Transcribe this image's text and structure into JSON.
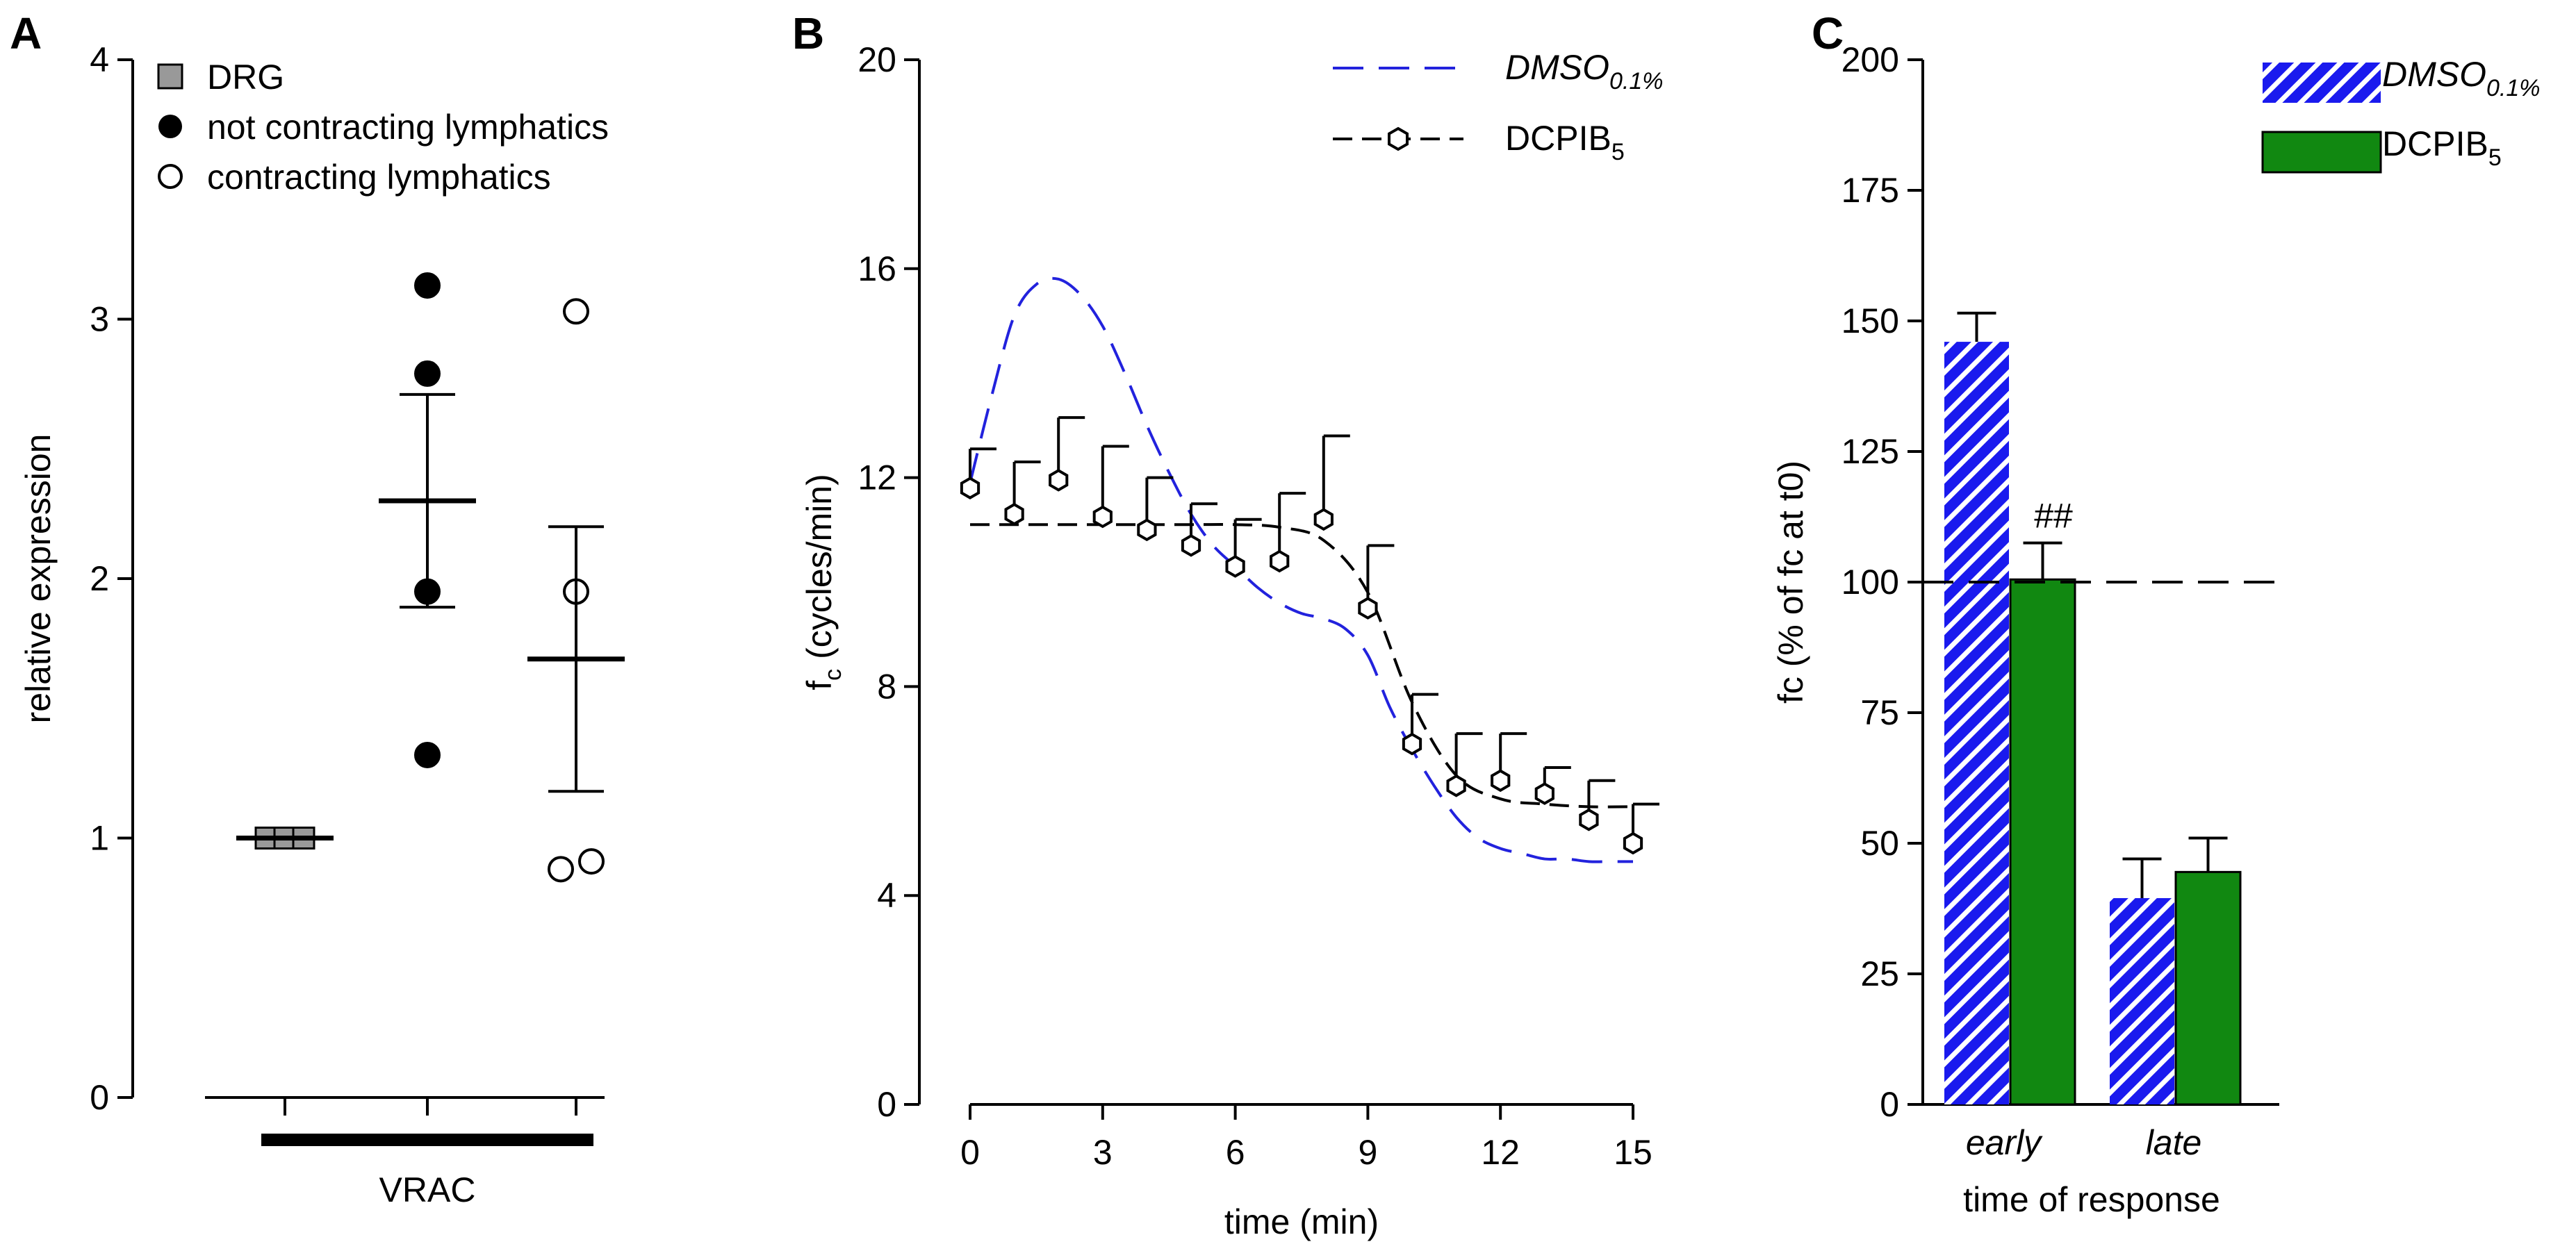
{
  "chart_data": [
    {
      "panel": "A",
      "type": "scatter",
      "ylabel": "relative expression",
      "ylim": [
        0,
        4
      ],
      "yticks": [
        "0",
        "1",
        "2",
        "3",
        "4"
      ],
      "group_label": "VRAC",
      "legend": [
        {
          "label": "DRG",
          "marker": "gray-square"
        },
        {
          "label": "not contracting lymphatics",
          "marker": "filled-circle"
        },
        {
          "label": "contracting lymphatics",
          "marker": "open-circle"
        }
      ],
      "groups": [
        {
          "name": "DRG",
          "points": [
            1.0,
            1.0,
            1.0
          ],
          "mean": 1.0,
          "sem": 0.0
        },
        {
          "name": "not contracting lymphatics",
          "points": [
            3.13,
            2.79,
            1.95,
            1.32
          ],
          "mean": 2.3,
          "sem": 0.41
        },
        {
          "name": "contracting lymphatics",
          "points": [
            3.03,
            1.95,
            0.88,
            0.91
          ],
          "mean": 1.69,
          "sem": 0.51
        }
      ]
    },
    {
      "panel": "B",
      "type": "line",
      "xlabel": "time (min)",
      "ylabel": "fc (cycles/min)",
      "ylabel_main": "f",
      "ylabel_sub": "c",
      "ylabel_rest": " (cycles/min)",
      "xlim": [
        0,
        15
      ],
      "ylim": [
        0,
        20
      ],
      "xticks": [
        "0",
        "3",
        "6",
        "9",
        "12",
        "15"
      ],
      "yticks": [
        "0",
        "4",
        "8",
        "12",
        "16",
        "20"
      ],
      "series": [
        {
          "name": "DMSO0.1%",
          "legend_main": "DMSO",
          "legend_sub": "0.1%",
          "color": "#2222dd",
          "style": "dashed-fit",
          "x": [
            0,
            0.5,
            1,
            1.5,
            2,
            2.5,
            3,
            3.5,
            4,
            4.5,
            5,
            5.5,
            6,
            6.5,
            7,
            7.5,
            8,
            8.5,
            9,
            9.5,
            10,
            10.5,
            11,
            11.5,
            12,
            12.5,
            13,
            13.5,
            14,
            14.5,
            15
          ],
          "y": [
            11.9,
            13.6,
            15.1,
            15.7,
            15.8,
            15.5,
            14.9,
            14.0,
            13.0,
            12.1,
            11.3,
            10.7,
            10.3,
            9.9,
            9.6,
            9.4,
            9.3,
            9.1,
            8.6,
            7.6,
            6.8,
            6.1,
            5.5,
            5.1,
            4.9,
            4.8,
            4.7,
            4.7,
            4.65,
            4.65,
            4.65
          ]
        },
        {
          "name": "DCPIB5",
          "legend_main": "DCPIB",
          "legend_sub": "5",
          "color": "#000000",
          "style": "dashed-fit-with-points",
          "x": [
            0,
            1,
            2,
            3,
            4,
            5,
            6,
            7,
            8,
            9,
            10,
            11,
            12,
            13,
            14,
            15
          ],
          "y": [
            11.8,
            11.3,
            11.95,
            11.25,
            11.0,
            10.7,
            10.3,
            10.4,
            11.2,
            9.5,
            6.9,
            6.1,
            6.2,
            5.95,
            5.45,
            5.0
          ],
          "err": [
            0.75,
            1.0,
            1.2,
            1.35,
            1.0,
            0.8,
            0.9,
            1.3,
            1.6,
            1.2,
            0.95,
            1.0,
            0.9,
            0.5,
            0.75,
            0.75
          ],
          "fit_y": [
            11.1,
            11.1,
            11.1,
            11.1,
            11.1,
            11.1,
            11.1,
            11.05,
            10.8,
            9.8,
            7.7,
            6.3,
            5.85,
            5.75,
            5.7,
            5.7
          ]
        }
      ]
    },
    {
      "panel": "C",
      "type": "bar",
      "xlabel": "time of response",
      "ylabel": "fc (% of fc at t0)",
      "ylim": [
        0,
        200
      ],
      "yticks": [
        "0",
        "25",
        "50",
        "75",
        "100",
        "125",
        "150",
        "175",
        "200"
      ],
      "categories": [
        "early",
        "late"
      ],
      "reference_line": 100,
      "annotation": "##",
      "series": [
        {
          "name": "DMSO0.1%",
          "legend_main": "DMSO",
          "legend_sub": "0.1%",
          "color": "#1a1aee",
          "pattern": "hatched",
          "values": [
            146,
            39.5
          ],
          "err": [
            5.5,
            7.5
          ]
        },
        {
          "name": "DCPIB5",
          "legend_main": "DCPIB",
          "legend_sub": "5",
          "color": "#118811",
          "pattern": "solid",
          "values": [
            100.5,
            44.5
          ],
          "err": [
            7.0,
            6.5
          ]
        }
      ]
    }
  ],
  "panel_letters": [
    "A",
    "B",
    "C"
  ],
  "colors": {
    "blue": "#2222dd",
    "green": "#118811",
    "gray": "#999999"
  }
}
